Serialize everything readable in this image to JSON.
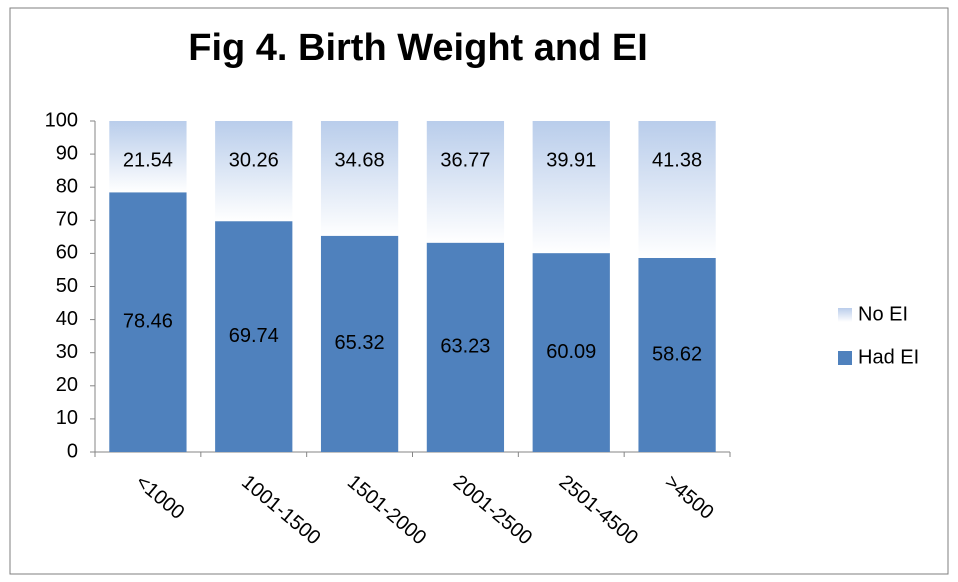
{
  "chart_data": {
    "type": "stacked_bar",
    "title": "Fig 4. Birth Weight and EI",
    "categories": [
      "<1000",
      "1001-1500",
      "1501-2000",
      "2001-2500",
      "2501-4500",
      ">4500"
    ],
    "series": [
      {
        "name": "Had EI",
        "color": "#4f81bd",
        "values": [
          78.46,
          69.74,
          65.32,
          63.23,
          60.09,
          58.62
        ]
      },
      {
        "name": "No EI",
        "color": "#b9cdeb",
        "values": [
          21.54,
          30.26,
          34.68,
          36.77,
          39.91,
          41.38
        ]
      }
    ],
    "ylim": [
      0,
      100
    ],
    "yticks": [
      0,
      10,
      20,
      30,
      40,
      50,
      60,
      70,
      80,
      90,
      100
    ],
    "legend": "right"
  }
}
